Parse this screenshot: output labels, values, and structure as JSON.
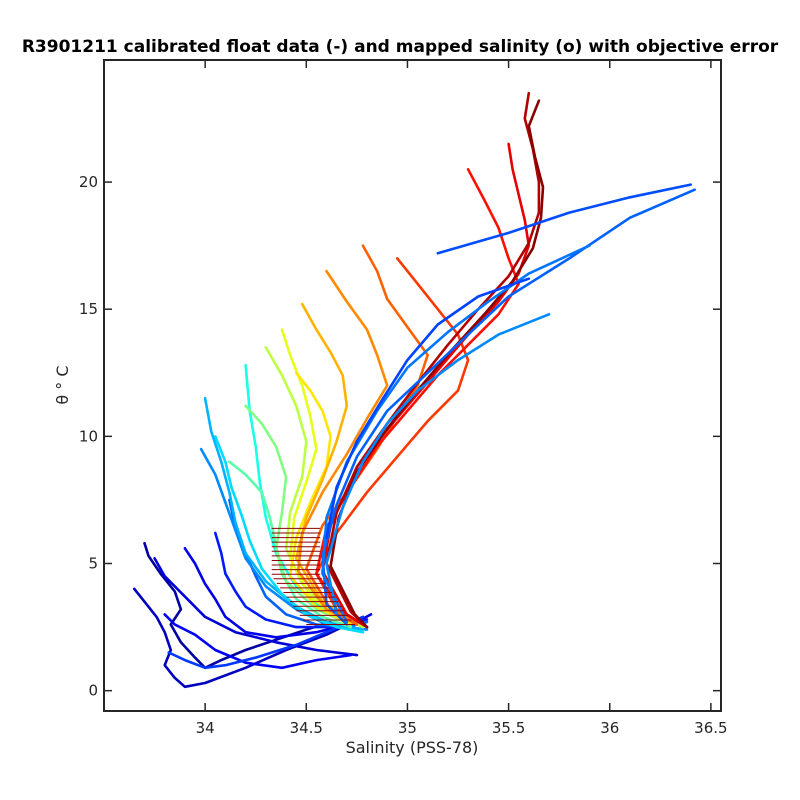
{
  "chart_data": {
    "type": "line",
    "title": "R3901211 calibrated float data (-) and mapped salinity (o) with objective error",
    "xlabel": "Salinity (PSS-78)",
    "ylabel": "θ ° C",
    "xlim": [
      33.5,
      36.55
    ],
    "ylim": [
      -0.8,
      24.8
    ],
    "x_ticks": [
      34,
      34.5,
      35,
      35.5,
      36,
      36.5
    ],
    "x_tick_labels": [
      "34",
      "34.5",
      "35",
      "35.5",
      "36",
      "36.5"
    ],
    "y_ticks": [
      0,
      5,
      10,
      15,
      20
    ],
    "y_tick_labels": [
      "0",
      "5",
      "10",
      "15",
      "20"
    ],
    "grid": false,
    "legend": "none",
    "colormap": "jet (profile number: early = blue, late = dark red)",
    "colormap_colors": [
      "#00008f",
      "#0000ff",
      "#0080ff",
      "#00ffff",
      "#80ff80",
      "#ffff00",
      "#ff8000",
      "#ff0000",
      "#800000"
    ],
    "series": [
      {
        "profile_fraction": 0.02,
        "x": [
          33.7,
          33.72,
          33.78,
          33.85,
          33.88,
          33.83,
          33.88,
          33.95,
          34.0,
          34.08,
          34.2,
          34.35,
          34.5,
          34.62
        ],
        "y": [
          5.8,
          5.3,
          4.6,
          3.9,
          3.2,
          2.6,
          1.9,
          1.3,
          0.9,
          1.2,
          1.6,
          2.0,
          2.4,
          2.7
        ]
      },
      {
        "profile_fraction": 0.05,
        "x": [
          33.65,
          33.7,
          33.76,
          33.8,
          33.83,
          33.8,
          33.85,
          33.9,
          34.0,
          34.2,
          34.4,
          34.6,
          34.78
        ],
        "y": [
          4.0,
          3.5,
          2.9,
          2.3,
          1.6,
          1.0,
          0.5,
          0.15,
          0.3,
          0.9,
          1.6,
          2.2,
          2.9
        ]
      },
      {
        "profile_fraction": 0.08,
        "x": [
          33.75,
          33.8,
          33.9,
          34.0,
          34.15,
          34.35,
          34.55,
          34.75
        ],
        "y": [
          5.2,
          4.5,
          3.7,
          2.9,
          2.3,
          1.9,
          1.6,
          1.4
        ]
      },
      {
        "profile_fraction": 0.1,
        "x": [
          33.9,
          33.95,
          34.0,
          34.05,
          34.1,
          34.2,
          34.35,
          34.55,
          34.75,
          34.82
        ],
        "y": [
          5.6,
          5.0,
          4.2,
          3.6,
          2.9,
          2.3,
          2.1,
          2.3,
          2.7,
          3.0
        ]
      },
      {
        "profile_fraction": 0.12,
        "x": [
          33.8,
          33.85,
          33.95,
          34.05,
          34.2,
          34.38,
          34.55,
          34.72
        ],
        "y": [
          3.0,
          2.6,
          2.2,
          1.6,
          1.1,
          0.9,
          1.2,
          1.4
        ]
      },
      {
        "profile_fraction": 0.15,
        "x": [
          34.05,
          34.08,
          34.1,
          34.15,
          34.2,
          34.3,
          34.45,
          34.62,
          34.8
        ],
        "y": [
          6.2,
          5.4,
          4.6,
          3.9,
          3.3,
          2.8,
          2.5,
          2.5,
          2.8
        ]
      },
      {
        "profile_fraction": 0.18,
        "x": [
          33.82,
          33.9,
          34.0,
          34.1,
          34.25,
          34.45,
          34.6,
          34.78
        ],
        "y": [
          1.5,
          1.2,
          0.9,
          1.0,
          1.3,
          1.8,
          2.3,
          2.9
        ]
      },
      {
        "profile_fraction": 0.22,
        "x": [
          34.12,
          34.15,
          34.2,
          34.25,
          34.3,
          34.4,
          34.55,
          34.7,
          34.8
        ],
        "y": [
          7.5,
          6.4,
          5.4,
          4.5,
          3.7,
          3.0,
          2.6,
          2.5,
          2.7
        ]
      },
      {
        "profile_fraction": 0.26,
        "x": [
          33.98,
          34.05,
          34.1,
          34.15,
          34.2,
          34.3,
          34.45,
          34.6,
          34.8
        ],
        "y": [
          9.5,
          8.5,
          7.4,
          6.3,
          5.2,
          4.1,
          3.2,
          2.6,
          2.4
        ]
      },
      {
        "profile_fraction": 0.3,
        "x": [
          34.0,
          34.03,
          34.08,
          34.12,
          34.15,
          34.2,
          34.3,
          34.45,
          34.6,
          34.78
        ],
        "y": [
          11.5,
          10.2,
          9.0,
          7.8,
          6.6,
          5.4,
          4.3,
          3.3,
          2.7,
          2.4
        ]
      },
      {
        "profile_fraction": 0.34,
        "x": [
          34.05,
          34.1,
          34.13,
          34.18,
          34.22,
          34.28,
          34.38,
          34.5,
          34.65,
          34.78
        ],
        "y": [
          10.0,
          9.0,
          8.0,
          6.9,
          5.9,
          4.8,
          3.8,
          3.0,
          2.5,
          2.3
        ]
      },
      {
        "profile_fraction": 0.4,
        "x": [
          34.2,
          34.22,
          34.25,
          34.27,
          34.3,
          34.35,
          34.45,
          34.6,
          34.75
        ],
        "y": [
          12.8,
          11.0,
          9.6,
          8.2,
          6.8,
          5.4,
          4.1,
          3.1,
          2.6
        ]
      },
      {
        "profile_fraction": 0.46,
        "x": [
          34.12,
          34.2,
          34.28,
          34.32,
          34.35,
          34.38,
          34.45,
          34.58,
          34.72
        ],
        "y": [
          9.0,
          8.5,
          7.8,
          6.8,
          5.7,
          4.6,
          3.6,
          2.9,
          2.5
        ]
      },
      {
        "profile_fraction": 0.5,
        "x": [
          34.2,
          34.28,
          34.35,
          34.4,
          34.38,
          34.35,
          34.4,
          34.55,
          34.72
        ],
        "y": [
          11.2,
          10.5,
          9.6,
          8.4,
          7.0,
          5.6,
          4.3,
          3.2,
          2.6
        ]
      },
      {
        "profile_fraction": 0.56,
        "x": [
          34.3,
          34.38,
          34.45,
          34.5,
          34.48,
          34.42,
          34.4,
          34.48,
          34.62,
          34.78
        ],
        "y": [
          13.5,
          12.4,
          11.2,
          9.8,
          8.4,
          7.0,
          5.6,
          4.2,
          3.1,
          2.5
        ]
      },
      {
        "profile_fraction": 0.6,
        "x": [
          34.38,
          34.42,
          34.48,
          34.52,
          34.55,
          34.5,
          34.44,
          34.42,
          34.52,
          34.7
        ],
        "y": [
          14.2,
          13.2,
          12.0,
          10.8,
          9.5,
          8.2,
          6.8,
          5.2,
          3.7,
          2.6
        ]
      },
      {
        "profile_fraction": 0.65,
        "x": [
          34.45,
          34.52,
          34.58,
          34.62,
          34.6,
          34.52,
          34.45,
          34.42,
          34.55,
          34.72
        ],
        "y": [
          12.5,
          11.8,
          11.0,
          10.0,
          8.8,
          7.4,
          6.0,
          4.5,
          3.3,
          2.6
        ]
      },
      {
        "profile_fraction": 0.7,
        "x": [
          34.48,
          34.55,
          34.62,
          34.68,
          34.7,
          34.65,
          34.58,
          34.5,
          34.45,
          34.58,
          34.75
        ],
        "y": [
          15.2,
          14.2,
          13.3,
          12.4,
          11.2,
          9.8,
          8.3,
          6.8,
          5.2,
          3.5,
          2.6
        ]
      },
      {
        "profile_fraction": 0.74,
        "x": [
          34.6,
          34.7,
          34.8,
          34.85,
          34.9,
          34.8,
          34.7,
          34.58,
          34.48,
          34.46,
          34.6,
          34.75
        ],
        "y": [
          16.5,
          15.3,
          14.2,
          13.2,
          12.0,
          10.7,
          9.3,
          7.8,
          6.2,
          4.7,
          3.2,
          2.6
        ]
      },
      {
        "profile_fraction": 0.78,
        "x": [
          34.78,
          34.85,
          34.9,
          35.0,
          35.1,
          35.05,
          34.95,
          34.85,
          34.72,
          34.58,
          34.5,
          34.62,
          34.75
        ],
        "y": [
          17.5,
          16.5,
          15.4,
          14.3,
          13.2,
          12.0,
          10.8,
          9.5,
          8.0,
          6.5,
          4.8,
          3.2,
          2.6
        ]
      },
      {
        "profile_fraction": 0.82,
        "x": [
          34.95,
          35.05,
          35.15,
          35.25,
          35.3,
          35.25,
          35.1,
          34.95,
          34.8,
          34.65,
          34.55,
          34.65,
          34.78
        ],
        "y": [
          17.0,
          16.0,
          15.0,
          14.0,
          13.0,
          11.8,
          10.6,
          9.2,
          7.8,
          6.2,
          4.6,
          3.2,
          2.6
        ]
      },
      {
        "profile_fraction": 0.86,
        "x": [
          35.3,
          35.38,
          35.45,
          35.5,
          35.55,
          35.45,
          35.3,
          35.15,
          35.0,
          34.85,
          34.72,
          34.6,
          34.55,
          34.68,
          34.78
        ],
        "y": [
          20.5,
          19.3,
          18.2,
          17.0,
          16.0,
          14.8,
          13.6,
          12.4,
          11.0,
          9.6,
          8.0,
          6.4,
          4.6,
          3.1,
          2.6
        ]
      },
      {
        "profile_fraction": 0.9,
        "x": [
          35.5,
          35.52,
          35.55,
          35.58,
          35.6,
          35.55,
          35.45,
          35.3,
          35.15,
          35.0,
          34.85,
          34.72,
          34.62,
          34.58,
          34.7,
          34.8
        ],
        "y": [
          21.5,
          20.5,
          19.5,
          18.5,
          17.5,
          16.4,
          15.3,
          14.0,
          12.6,
          11.2,
          9.8,
          8.2,
          6.5,
          4.7,
          3.0,
          2.5
        ]
      },
      {
        "profile_fraction": 0.95,
        "x": [
          35.6,
          35.58,
          35.62,
          35.65,
          35.65,
          35.6,
          35.5,
          35.35,
          35.2,
          35.05,
          34.9,
          34.75,
          34.65,
          34.6,
          34.72,
          34.8
        ],
        "y": [
          23.5,
          22.5,
          21.3,
          20.0,
          18.8,
          17.6,
          16.3,
          15.0,
          13.6,
          12.1,
          10.5,
          8.8,
          7.0,
          5.0,
          3.1,
          2.5
        ]
      },
      {
        "profile_fraction": 0.99,
        "x": [
          35.65,
          35.6,
          35.63,
          35.67,
          35.66,
          35.62,
          35.52,
          35.38,
          35.22,
          35.06,
          34.9,
          34.75,
          34.66,
          34.62,
          34.74,
          34.8
        ],
        "y": [
          23.2,
          22.2,
          21.0,
          19.8,
          18.6,
          17.4,
          16.1,
          14.8,
          13.4,
          11.9,
          10.3,
          8.6,
          6.8,
          4.9,
          3.0,
          2.5
        ]
      },
      {
        "profile_fraction": 0.2,
        "x": [
          35.15,
          35.5,
          35.8,
          36.1,
          36.4
        ],
        "y": [
          17.2,
          18.0,
          18.8,
          19.4,
          19.9
        ]
      },
      {
        "profile_fraction": 0.22,
        "x": [
          36.42,
          36.1,
          35.8,
          35.5,
          35.3,
          35.1,
          34.9,
          34.75,
          34.65,
          34.58,
          34.6,
          34.7
        ],
        "y": [
          19.7,
          18.6,
          17.0,
          15.5,
          14.0,
          12.5,
          11.0,
          9.2,
          7.3,
          5.3,
          3.4,
          2.6
        ]
      },
      {
        "profile_fraction": 0.24,
        "x": [
          35.9,
          35.6,
          35.4,
          35.2,
          35.0,
          34.85,
          34.7,
          34.6,
          34.58,
          34.7
        ],
        "y": [
          17.5,
          16.4,
          15.3,
          14.1,
          12.7,
          11.0,
          9.0,
          6.8,
          4.6,
          2.7
        ]
      },
      {
        "profile_fraction": 0.26,
        "x": [
          35.7,
          35.45,
          35.25,
          35.05,
          34.9,
          34.78,
          34.68,
          34.6,
          34.65
        ],
        "y": [
          14.8,
          14.0,
          13.0,
          11.8,
          10.5,
          9.0,
          7.2,
          5.0,
          3.0
        ]
      },
      {
        "profile_fraction": 0.19,
        "x": [
          35.6,
          35.35,
          35.15,
          35.0,
          34.88,
          34.75,
          34.65,
          34.6
        ],
        "y": [
          16.2,
          15.5,
          14.4,
          13.0,
          11.5,
          9.8,
          8.0,
          6.0
        ]
      }
    ],
    "mapped_salinity_marker": "o",
    "error_bars": "horizontal objective-error bars along the mean θ–S curve (θ 2.5–6.5 °C)"
  }
}
